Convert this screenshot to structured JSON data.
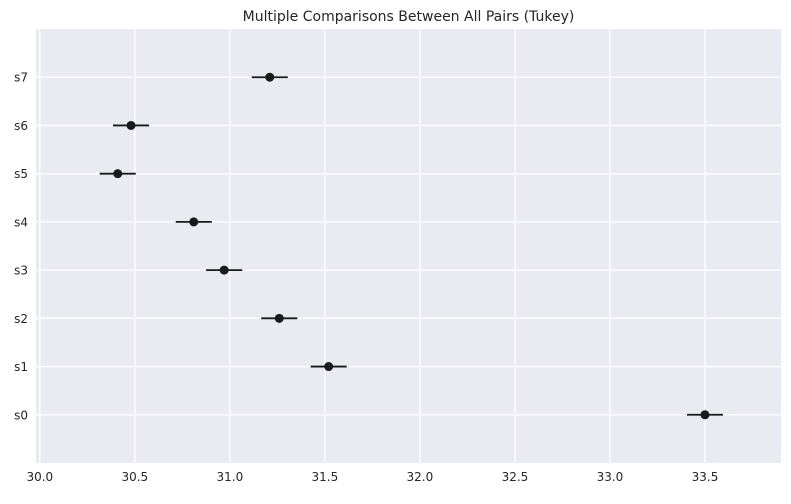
{
  "chart_data": {
    "type": "scatter",
    "title": "Multiple Comparisons Between All Pairs (Tukey)",
    "xlabel": "",
    "ylabel": "",
    "xlim": [
      29.98,
      33.9
    ],
    "x_ticks": [
      30.0,
      30.5,
      31.0,
      31.5,
      32.0,
      32.5,
      33.0,
      33.5
    ],
    "x_tick_labels": [
      "30.0",
      "30.5",
      "31.0",
      "31.5",
      "32.0",
      "32.5",
      "33.0",
      "33.5"
    ],
    "categories": [
      "s0",
      "s1",
      "s2",
      "s3",
      "s4",
      "s5",
      "s6",
      "s7"
    ],
    "points": [
      {
        "label": "s0",
        "mean": 33.5,
        "lower": 33.405,
        "upper": 33.595
      },
      {
        "label": "s1",
        "mean": 31.52,
        "lower": 31.425,
        "upper": 31.615
      },
      {
        "label": "s2",
        "mean": 31.26,
        "lower": 31.165,
        "upper": 31.355
      },
      {
        "label": "s3",
        "mean": 30.97,
        "lower": 30.875,
        "upper": 31.065
      },
      {
        "label": "s4",
        "mean": 30.81,
        "lower": 30.715,
        "upper": 30.905
      },
      {
        "label": "s5",
        "mean": 30.41,
        "lower": 30.315,
        "upper": 30.505
      },
      {
        "label": "s6",
        "mean": 30.48,
        "lower": 30.385,
        "upper": 30.575
      },
      {
        "label": "s7",
        "mean": 31.21,
        "lower": 31.115,
        "upper": 31.305
      }
    ],
    "grid": true,
    "background_color": "#eaeaf2",
    "grid_color": "#ffffff",
    "marker_color": "#1a1a1a"
  }
}
